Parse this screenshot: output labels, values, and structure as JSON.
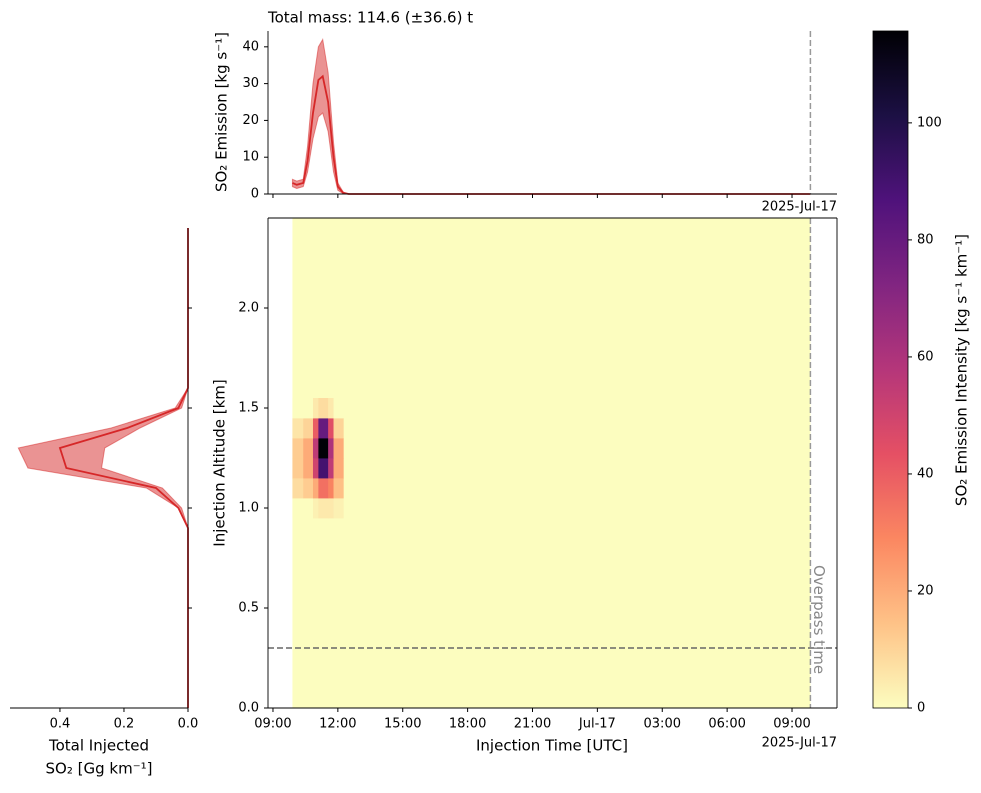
{
  "chart_data": [
    {
      "type": "line",
      "title": "Total mass: 114.6 (±36.6) t",
      "ylabel": "SO₂ Emission [kg s⁻¹]",
      "offset_label": "2025-Jul-17",
      "xlim": [
        8.77,
        35.08
      ],
      "ylim": [
        0,
        44.3
      ],
      "yticks": [
        0,
        10,
        20,
        30,
        40
      ],
      "xticks": [
        9,
        12,
        15,
        18,
        21,
        24,
        27,
        30,
        33
      ],
      "vline": 33.85,
      "x": [
        9.9,
        10.1,
        10.4,
        10.6,
        10.85,
        11.1,
        11.3,
        11.55,
        11.8,
        12.0,
        12.25,
        12.5,
        12.8,
        33.85
      ],
      "series": [
        {
          "color": "#d62728",
          "values": [
            3,
            2.5,
            3,
            9,
            22,
            31,
            32,
            25,
            10,
            2,
            0.3,
            0,
            0,
            0
          ],
          "lower": [
            2,
            1.5,
            2,
            6,
            15,
            21,
            22,
            17,
            6,
            1,
            0.1,
            0,
            0,
            0
          ],
          "upper": [
            4,
            3.5,
            4,
            13,
            30,
            40,
            42,
            33,
            14,
            3,
            0.5,
            0,
            0,
            0
          ]
        }
      ]
    },
    {
      "type": "line",
      "orientation": "horizontal",
      "xlabel": [
        "Total Injected",
        "SO₂ [Gg km⁻¹]"
      ],
      "xlim": [
        0.556,
        0
      ],
      "ylim": [
        0,
        2.45
      ],
      "xticks": [
        0.4,
        0.2,
        {
          "value": 0,
          "label": "0.0"
        }
      ],
      "yticks": [
        0.5,
        1,
        1.5,
        2
      ],
      "y": [
        0,
        0.9,
        1.0,
        1.1,
        1.2,
        1.3,
        1.4,
        1.5,
        1.6,
        2.4
      ],
      "series": [
        {
          "color": "#d62728",
          "values": [
            0,
            0,
            0.03,
            0.1,
            0.38,
            0.4,
            0.19,
            0.03,
            0,
            0
          ],
          "lower": [
            0,
            0,
            0.02,
            0.08,
            0.27,
            0.26,
            0.15,
            0.02,
            0,
            0
          ],
          "upper": [
            0,
            0,
            0.03,
            0.13,
            0.5,
            0.53,
            0.24,
            0.04,
            0,
            0
          ]
        }
      ]
    },
    {
      "type": "heatmap",
      "xlabel": "Injection Time [UTC]",
      "ylabel": "Injection Altitude [km]",
      "offset_label": "2025-Jul-17",
      "xlim": [
        8.77,
        35.08
      ],
      "ylim": [
        0,
        2.45
      ],
      "xticks": [
        {
          "value": 9,
          "label": "09:00"
        },
        {
          "value": 12,
          "label": "12:00"
        },
        {
          "value": 15,
          "label": "15:00"
        },
        {
          "value": 18,
          "label": "18:00"
        },
        {
          "value": 21,
          "label": "21:00"
        },
        {
          "value": 24,
          "label": "Jul-17"
        },
        {
          "value": 27,
          "label": "03:00"
        },
        {
          "value": 30,
          "label": "06:00"
        },
        {
          "value": 33,
          "label": "09:00"
        }
      ],
      "yticks": [
        {
          "value": 0,
          "label": "0.0"
        },
        0.5,
        {
          "value": 1,
          "label": "1.0"
        },
        1.5,
        {
          "value": 2,
          "label": "2.0"
        }
      ],
      "vline": 33.85,
      "vline_label": "Overpass time",
      "hline": 0.3,
      "fill_value": 0,
      "extent_x": [
        9.9,
        33.85
      ],
      "extent_y": [
        0,
        2.45
      ],
      "x_edges": [
        9.9,
        10.4,
        10.85,
        11.1,
        11.55,
        11.8,
        12.25
      ],
      "y_edges": [
        0.95,
        1.05,
        1.15,
        1.25,
        1.35,
        1.45,
        1.55
      ],
      "z": [
        [
          0,
          0,
          3,
          5,
          5,
          3
        ],
        [
          8,
          12,
          20,
          35,
          30,
          15
        ],
        [
          12,
          20,
          50,
          90,
          55,
          20
        ],
        [
          12,
          20,
          55,
          115,
          60,
          20
        ],
        [
          6,
          10,
          40,
          80,
          45,
          10
        ],
        [
          0,
          0,
          5,
          8,
          5,
          0
        ]
      ],
      "colormap": "magma_r",
      "clim": [
        0,
        115.7
      ],
      "cticks": [
        0,
        20,
        40,
        60,
        80,
        100
      ],
      "clabel": "SO₂ Emission Intensity [kg s⁻¹ km⁻¹]"
    }
  ]
}
